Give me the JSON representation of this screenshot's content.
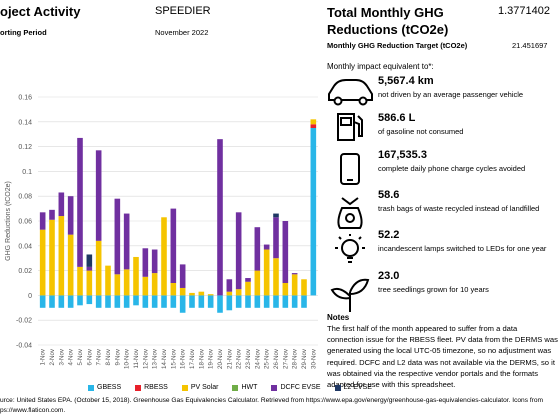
{
  "header": {
    "title": "oject Activity",
    "project": "SPEEDIER",
    "period_label": "orting Period",
    "period": "November 2022"
  },
  "summary": {
    "title": "Total Monthly GHG Reductions (tCO2e)",
    "value": "1.3771402",
    "target_label": "Monthly GHG Reduction Target (tCO2e)",
    "target_value": "21.451697"
  },
  "chart_data": {
    "type": "bar",
    "stacked": true,
    "y_label": "GHG Reductions (tCO2e)",
    "categories": [
      "1-Nov",
      "2-Nov",
      "3-Nov",
      "4-Nov",
      "5-Nov",
      "6-Nov",
      "7-Nov",
      "8-Nov",
      "9-Nov",
      "10-Nov",
      "11-Nov",
      "12-Nov",
      "13-Nov",
      "14-Nov",
      "15-Nov",
      "16-Nov",
      "17-Nov",
      "18-Nov",
      "19-Nov",
      "20-Nov",
      "21-Nov",
      "22-Nov",
      "23-Nov",
      "24-Nov",
      "25-Nov",
      "26-Nov",
      "27-Nov",
      "28-Nov",
      "29-Nov",
      "30-Nov"
    ],
    "series": [
      {
        "name": "GBESS",
        "color": "#29b6e8",
        "values": [
          -0.01,
          -0.01,
          -0.01,
          -0.01,
          -0.008,
          -0.007,
          -0.01,
          -0.01,
          -0.01,
          -0.01,
          -0.008,
          -0.01,
          -0.01,
          -0.01,
          -0.01,
          -0.014,
          -0.01,
          -0.01,
          -0.01,
          -0.014,
          -0.012,
          -0.01,
          -0.01,
          -0.01,
          -0.01,
          -0.01,
          -0.01,
          -0.01,
          -0.01,
          0.135
        ]
      },
      {
        "name": "RBESS",
        "color": "#e8202a",
        "values": [
          0,
          0,
          0,
          0,
          0,
          0,
          0,
          0,
          0,
          0,
          0,
          0,
          0,
          0,
          0,
          0,
          0,
          0,
          0,
          0,
          0,
          0,
          0,
          0,
          0,
          0,
          0,
          0,
          0,
          0.003
        ]
      },
      {
        "name": "PV Solar",
        "color": "#f5c400",
        "values": [
          0.053,
          0.061,
          0.064,
          0.049,
          0.023,
          0.02,
          0.044,
          0.024,
          0.017,
          0.021,
          0.031,
          0.015,
          0.018,
          0.063,
          0.01,
          0.006,
          0.002,
          0.003,
          0.001,
          0,
          0.003,
          0.005,
          0.011,
          0.02,
          0.037,
          0.03,
          0.01,
          0.017,
          0.013,
          0.004
        ]
      },
      {
        "name": "HWT",
        "color": "#70ad47",
        "values": [
          0,
          0,
          0,
          0,
          0,
          0,
          0,
          0,
          0,
          0,
          0,
          0,
          0,
          0,
          0,
          0,
          0,
          0,
          0,
          0,
          0,
          0,
          0,
          0,
          0,
          0,
          0,
          0,
          0,
          0
        ]
      },
      {
        "name": "DCFC EVSE",
        "color": "#7030a0",
        "values": [
          0.014,
          0.008,
          0.019,
          0.031,
          0.104,
          0.003,
          0.073,
          0,
          0.061,
          0.045,
          0,
          0.023,
          0.019,
          0,
          0.06,
          0.019,
          0,
          0,
          0,
          0.126,
          0.01,
          0.062,
          0.003,
          0.035,
          0.004,
          0.033,
          0.05,
          0.001,
          0,
          0
        ]
      },
      {
        "name": "L2 EVSE",
        "color": "#1f3864",
        "values": [
          0,
          0,
          0,
          0,
          0,
          0.01,
          0,
          0,
          0,
          0,
          0,
          0,
          0,
          0,
          0,
          0,
          0,
          0,
          0,
          0,
          0,
          0,
          0,
          0,
          0,
          0.003,
          0,
          0,
          0,
          0
        ]
      }
    ],
    "ylim": [
      -0.04,
      0.16
    ],
    "yticks": [
      -0.04,
      -0.02,
      0,
      0.02,
      0.04,
      0.06,
      0.08,
      0.1,
      0.12,
      0.14,
      0.16
    ],
    "grid": true,
    "legend": "bottom"
  },
  "source": [
    "urce: United States EPA. (October 15, 2018). Greenhouse Gas Equivalencies Calculator. Retrieved from https://www.epa.gov/energy/greenhouse-gas-equivalencies-calculator. Icons from",
    "ps://www.flaticon.com."
  ],
  "impact": {
    "heading": "Monthly impact equivalent to*:",
    "items": [
      {
        "value": "5,567.4 km",
        "text": "not driven by an average passenger vehicle"
      },
      {
        "value": "586.6 L",
        "text": "of gasoline not consumed"
      },
      {
        "value": "167,535.3",
        "text": "complete daily phone charge cycles avoided"
      },
      {
        "value": "58.6",
        "text": "trash bags of waste recycled instead of landfilled"
      },
      {
        "value": "52.2",
        "text": "incandescent lamps switched to LEDs for one year"
      },
      {
        "value": "23.0",
        "text": "tree seedlings grown for 10 years"
      }
    ]
  },
  "notes": {
    "heading": "Notes",
    "lines": [
      "The first half of the month appeared to suffer from a data",
      "connection issue for the RBESS fleet. PV data from the DERMS was",
      "generated using the local UTC-05 timezone, so no adjustment was",
      "required. DCFC and L2 data was not available via the DERMS, so it",
      "was obtained via the respective vendor portals and the formats",
      "adapted for use with this spreadsheet."
    ]
  }
}
